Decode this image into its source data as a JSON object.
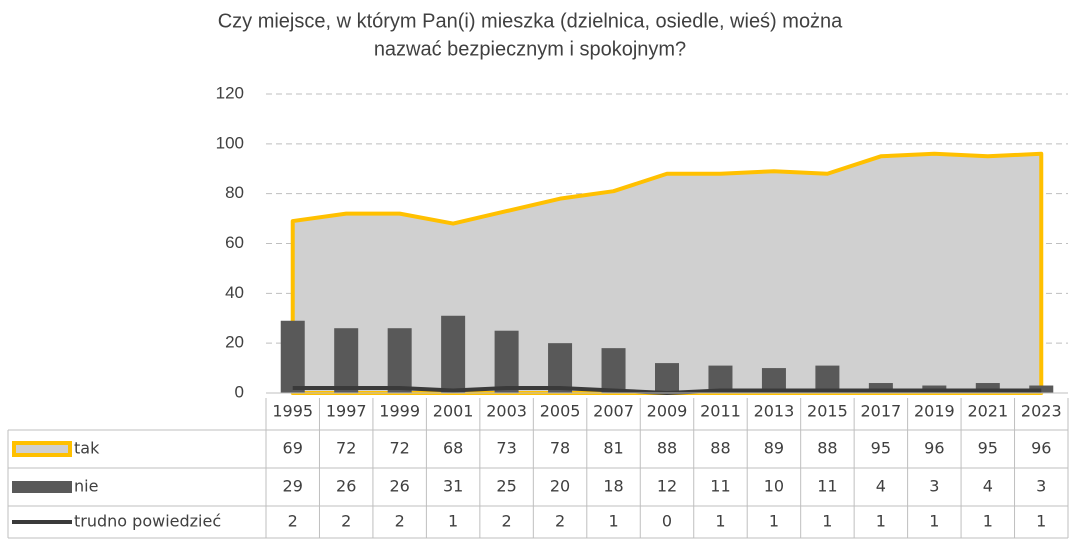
{
  "chart_data": {
    "type": "combo",
    "title": [
      "Czy miejsce, w którym Pan(i) mieszka (dzielnica, osiedle, wieś) można",
      "nazwać bezpiecznym i spokojnym?"
    ],
    "categories": [
      "1995",
      "1997",
      "1999",
      "2001",
      "2003",
      "2005",
      "2007",
      "2009",
      "2011",
      "2013",
      "2015",
      "2017",
      "2019",
      "2021",
      "2023"
    ],
    "series": [
      {
        "name": "tak",
        "type": "area",
        "color": "#d0d0d0",
        "edge_color": "#ffc000",
        "values": [
          69,
          72,
          72,
          68,
          73,
          78,
          81,
          88,
          88,
          89,
          88,
          95,
          96,
          95,
          96
        ]
      },
      {
        "name": "nie",
        "type": "bar",
        "color": "#595959",
        "values": [
          29,
          26,
          26,
          31,
          25,
          20,
          18,
          12,
          11,
          10,
          11,
          4,
          3,
          4,
          3
        ]
      },
      {
        "name": "trudno powiedzieć",
        "type": "line",
        "color": "#3a3a3a",
        "values": [
          2,
          2,
          2,
          1,
          2,
          2,
          1,
          0,
          1,
          1,
          1,
          1,
          1,
          1,
          1
        ]
      }
    ],
    "ylim": [
      0,
      120
    ],
    "yticks": [
      0,
      20,
      40,
      60,
      80,
      100,
      120
    ],
    "grid": true,
    "data_table": true
  }
}
